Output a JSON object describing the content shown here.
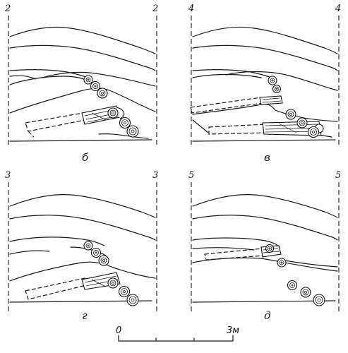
{
  "panels": [
    {
      "id": "b",
      "caption": "б",
      "section_left": "2",
      "section_right": "2"
    },
    {
      "id": "v",
      "caption": "в",
      "section_left": "4",
      "section_right": "4"
    },
    {
      "id": "g",
      "caption": "г",
      "section_left": "3",
      "section_right": "3"
    },
    {
      "id": "d",
      "caption": "д",
      "section_left": "5",
      "section_right": "5"
    }
  ],
  "scale": {
    "start_label": "0",
    "end_label": "3м"
  }
}
